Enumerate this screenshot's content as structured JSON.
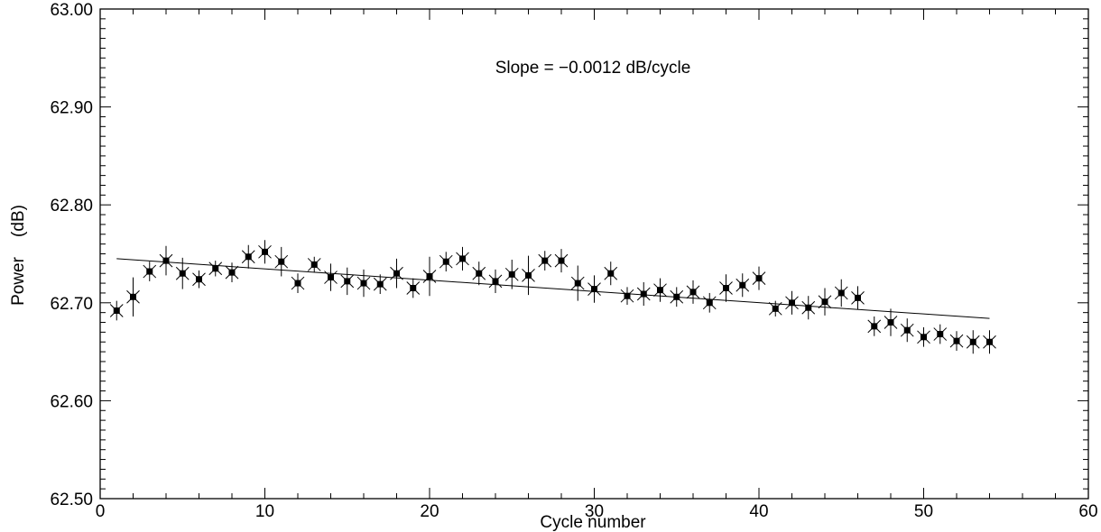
{
  "chart_data": {
    "type": "scatter",
    "title": "",
    "xlabel": "Cycle number",
    "ylabel": "Power (dB)",
    "ylabel_parts": [
      "Power",
      "(dB)"
    ],
    "xlim": [
      0,
      60
    ],
    "ylim": [
      62.5,
      63.0
    ],
    "xticks": [
      0,
      10,
      20,
      30,
      40,
      50,
      60
    ],
    "xtick_labels": [
      "0",
      "10",
      "20",
      "30",
      "40",
      "50",
      "60"
    ],
    "yticks": [
      62.5,
      62.6,
      62.7,
      62.8,
      62.9,
      63.0
    ],
    "ytick_labels": [
      "62.50",
      "62.60",
      "62.70",
      "62.80",
      "62.90",
      "63.00"
    ],
    "grid": false,
    "annotation": "Slope = −0.0012 dB/cycle",
    "series": [
      {
        "x": [
          1,
          2,
          3,
          4,
          5,
          6,
          7,
          8,
          9,
          10,
          11,
          12,
          13,
          14,
          15,
          16,
          17,
          18,
          19,
          20,
          21,
          22,
          23,
          24,
          25,
          26,
          27,
          28,
          29,
          30,
          31,
          32,
          33,
          34,
          35,
          36,
          37,
          38,
          39,
          40,
          41,
          42,
          43,
          44,
          45,
          46,
          47,
          48,
          49,
          50,
          51,
          52,
          53,
          54
        ],
        "y": [
          62.692,
          62.706,
          62.732,
          62.743,
          62.73,
          62.724,
          62.735,
          62.731,
          62.747,
          62.752,
          62.742,
          62.72,
          62.739,
          62.726,
          62.722,
          62.72,
          62.719,
          62.73,
          62.715,
          62.727,
          62.742,
          62.745,
          62.73,
          62.722,
          62.729,
          62.728,
          62.743,
          62.743,
          62.72,
          62.714,
          62.73,
          62.707,
          62.709,
          62.713,
          62.706,
          62.711,
          62.7,
          62.715,
          62.718,
          62.725,
          62.694,
          62.7,
          62.695,
          62.701,
          62.71,
          62.705,
          62.676,
          62.68,
          62.672,
          62.665,
          62.668,
          62.661,
          62.66,
          62.66
        ],
        "err": [
          0.01,
          0.02,
          0.01,
          0.015,
          0.016,
          0.009,
          0.008,
          0.01,
          0.012,
          0.012,
          0.015,
          0.01,
          0.008,
          0.014,
          0.014,
          0.014,
          0.01,
          0.015,
          0.01,
          0.02,
          0.01,
          0.012,
          0.012,
          0.012,
          0.015,
          0.02,
          0.01,
          0.012,
          0.018,
          0.014,
          0.012,
          0.009,
          0.012,
          0.012,
          0.01,
          0.012,
          0.01,
          0.014,
          0.012,
          0.012,
          0.008,
          0.012,
          0.012,
          0.014,
          0.014,
          0.012,
          0.01,
          0.014,
          0.012,
          0.01,
          0.01,
          0.01,
          0.012,
          0.012
        ]
      }
    ],
    "fit_line": {
      "slope": -0.0012,
      "x": [
        1,
        54
      ],
      "y": [
        62.745,
        62.684
      ]
    }
  }
}
